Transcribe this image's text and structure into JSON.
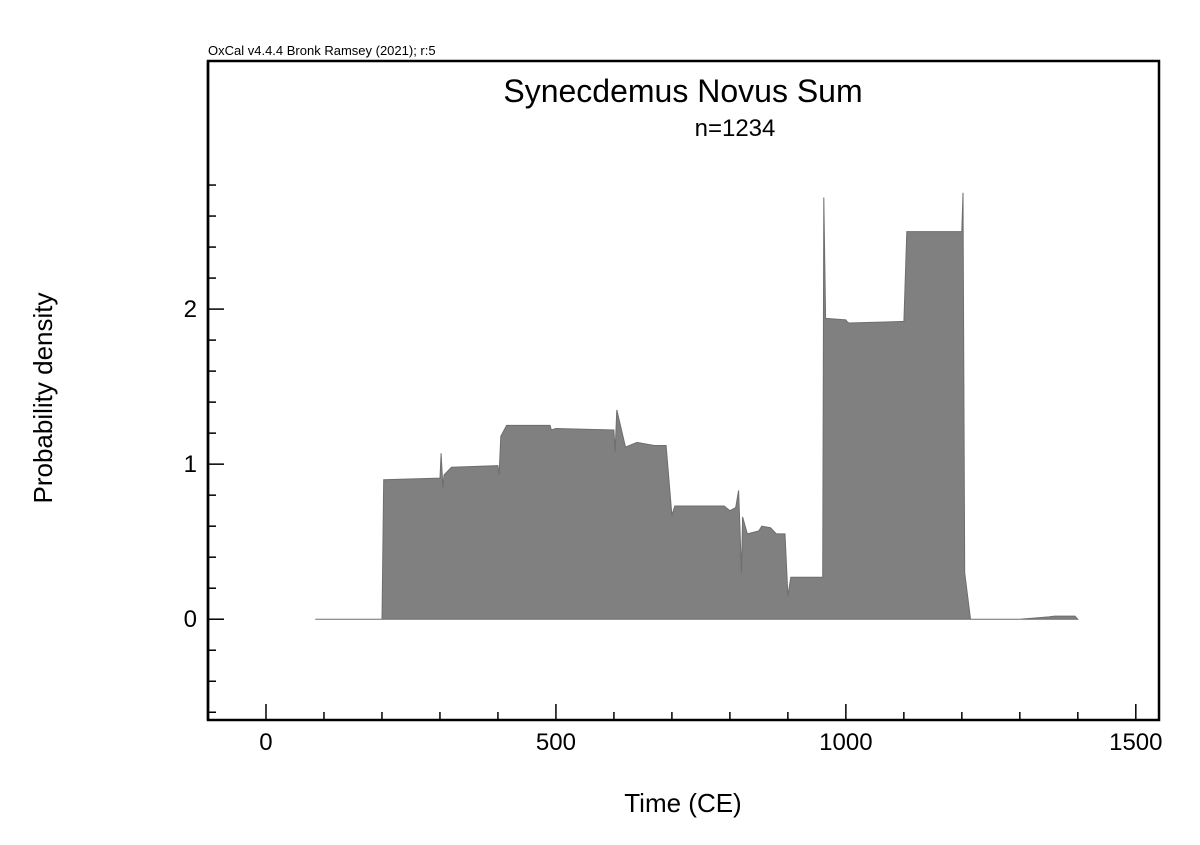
{
  "credit": "OxCal v4.4.4 Bronk Ramsey (2021); r:5",
  "chart_data": {
    "type": "area",
    "title": "Synecdemus Novus Sum",
    "subtitle": "n=1234",
    "xlabel": "Time (CE)",
    "ylabel": "Probability density",
    "xlim": [
      -100,
      1540
    ],
    "ylim": [
      -0.65,
      3.6
    ],
    "xticks": [
      0,
      500,
      1000,
      1500
    ],
    "yticks": [
      0,
      1,
      2
    ],
    "fill_color": "#808080",
    "grid": false,
    "series": [
      {
        "x": [
          85,
          200,
          203,
          300,
          302,
          305,
          307,
          320,
          400,
          402,
          405,
          415,
          490,
          492,
          500,
          600,
          602,
          605,
          620,
          640,
          655,
          670,
          690,
          700,
          705,
          790,
          800,
          810,
          815,
          820,
          822,
          830,
          850,
          855,
          870,
          880,
          895,
          900,
          905,
          960,
          962,
          965,
          1000,
          1002,
          1005,
          1095,
          1100,
          1105,
          1200,
          1202,
          1205,
          1215,
          1300,
          1350,
          1360,
          1395,
          1400
        ],
        "y": [
          0,
          0,
          0.9,
          0.91,
          1.07,
          0.85,
          0.93,
          0.98,
          0.99,
          0.93,
          1.18,
          1.25,
          1.25,
          1.22,
          1.23,
          1.22,
          1.08,
          1.35,
          1.11,
          1.14,
          1.13,
          1.12,
          1.12,
          0.67,
          0.73,
          0.73,
          0.7,
          0.72,
          0.83,
          0.3,
          0.66,
          0.55,
          0.57,
          0.6,
          0.59,
          0.55,
          0.55,
          0.15,
          0.27,
          0.27,
          2.72,
          1.94,
          1.93,
          1.92,
          1.91,
          1.92,
          1.92,
          2.5,
          2.5,
          2.75,
          0.3,
          0,
          0,
          0.015,
          0.02,
          0.02,
          0
        ]
      }
    ]
  }
}
